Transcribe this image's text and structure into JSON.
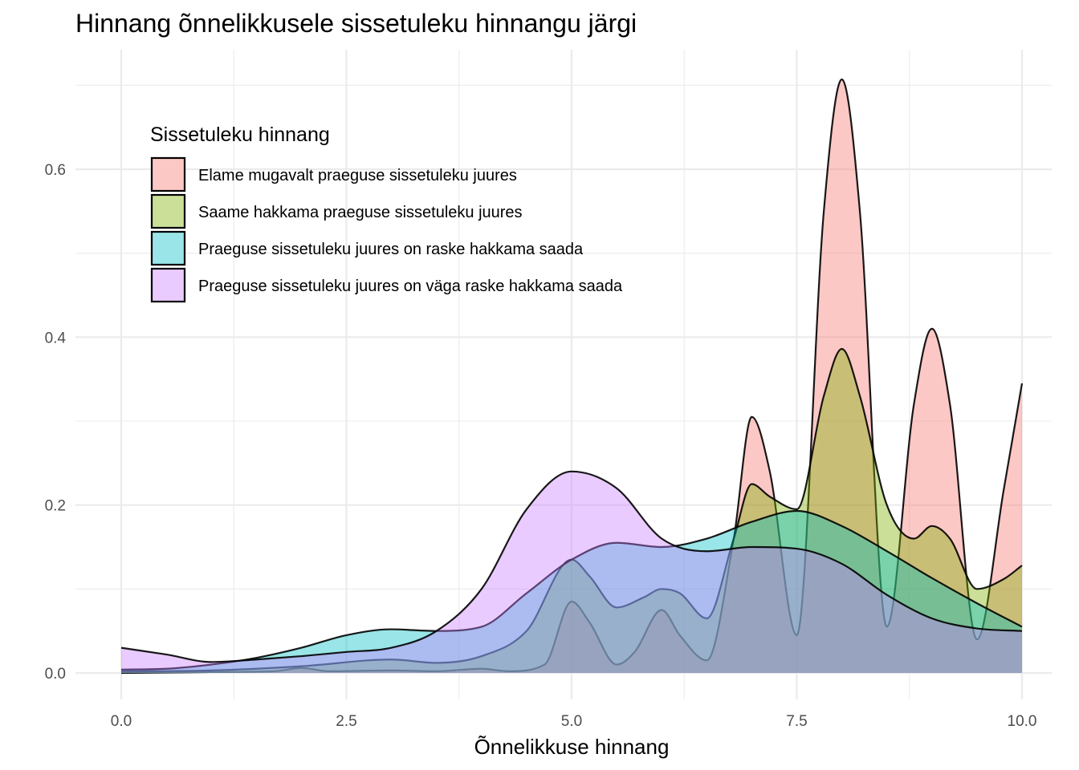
{
  "chart_data": {
    "type": "area",
    "title": "Hinnang õnnelikkusele sissetuleku hinnangu järgi",
    "xlabel": "Õnnelikkuse hinnang",
    "ylabel": "",
    "xlim": [
      0,
      10
    ],
    "ylim": [
      0,
      0.7
    ],
    "x_ticks": [
      "0.0",
      "2.5",
      "5.0",
      "7.5",
      "10.0"
    ],
    "y_ticks": [
      "0.0",
      "0.2",
      "0.4",
      "0.6"
    ],
    "grid": true,
    "legend": {
      "title": "Sissetuleku hinnang",
      "position": "top-left"
    },
    "series": [
      {
        "name": "Elame mugavalt praeguse sissetuleku juures",
        "color": "#F8766D",
        "points": [
          [
            0,
            0.0
          ],
          [
            1,
            0.001
          ],
          [
            1.7,
            0.002
          ],
          [
            2,
            0.006
          ],
          [
            2.3,
            0.002
          ],
          [
            3,
            0.003
          ],
          [
            3.5,
            0.002
          ],
          [
            4,
            0.005
          ],
          [
            4.3,
            0.002
          ],
          [
            4.7,
            0.01
          ],
          [
            5,
            0.085
          ],
          [
            5.2,
            0.06
          ],
          [
            5.5,
            0.01
          ],
          [
            5.7,
            0.025
          ],
          [
            6,
            0.075
          ],
          [
            6.2,
            0.045
          ],
          [
            6.5,
            0.015
          ],
          [
            6.8,
            0.16
          ],
          [
            7,
            0.305
          ],
          [
            7.2,
            0.24
          ],
          [
            7.5,
            0.045
          ],
          [
            7.8,
            0.55
          ],
          [
            8,
            0.707
          ],
          [
            8.2,
            0.55
          ],
          [
            8.5,
            0.055
          ],
          [
            8.8,
            0.32
          ],
          [
            9,
            0.41
          ],
          [
            9.2,
            0.32
          ],
          [
            9.5,
            0.04
          ],
          [
            9.8,
            0.22
          ],
          [
            10,
            0.345
          ]
        ]
      },
      {
        "name": "Saame hakkama praeguse sissetuleku juures",
        "color": "#7CAE00",
        "points": [
          [
            0,
            0.002
          ],
          [
            1,
            0.003
          ],
          [
            2,
            0.008
          ],
          [
            3,
            0.016
          ],
          [
            3.5,
            0.012
          ],
          [
            4,
            0.02
          ],
          [
            4.5,
            0.05
          ],
          [
            5,
            0.135
          ],
          [
            5.2,
            0.115
          ],
          [
            5.5,
            0.078
          ],
          [
            5.8,
            0.09
          ],
          [
            6,
            0.1
          ],
          [
            6.2,
            0.095
          ],
          [
            6.5,
            0.065
          ],
          [
            6.8,
            0.16
          ],
          [
            7,
            0.225
          ],
          [
            7.2,
            0.21
          ],
          [
            7.5,
            0.195
          ],
          [
            7.8,
            0.33
          ],
          [
            8,
            0.386
          ],
          [
            8.2,
            0.33
          ],
          [
            8.5,
            0.2
          ],
          [
            8.8,
            0.16
          ],
          [
            9,
            0.175
          ],
          [
            9.2,
            0.16
          ],
          [
            9.5,
            0.1
          ],
          [
            9.8,
            0.112
          ],
          [
            10,
            0.128
          ]
        ]
      },
      {
        "name": "Praeguse sissetuleku juures on raske hakkama saada",
        "color": "#00BFC4",
        "points": [
          [
            0,
            0.004
          ],
          [
            0.5,
            0.005
          ],
          [
            1,
            0.01
          ],
          [
            1.5,
            0.018
          ],
          [
            2,
            0.03
          ],
          [
            2.5,
            0.045
          ],
          [
            3,
            0.052
          ],
          [
            3.5,
            0.05
          ],
          [
            4,
            0.055
          ],
          [
            4.5,
            0.095
          ],
          [
            5,
            0.135
          ],
          [
            5.5,
            0.155
          ],
          [
            6,
            0.15
          ],
          [
            6.5,
            0.16
          ],
          [
            7,
            0.18
          ],
          [
            7.5,
            0.193
          ],
          [
            8,
            0.175
          ],
          [
            8.5,
            0.145
          ],
          [
            9,
            0.113
          ],
          [
            9.5,
            0.083
          ],
          [
            10,
            0.055
          ]
        ]
      },
      {
        "name": "Praeguse sissetuleku juures on väga raske hakkama saada",
        "color": "#C77CFF",
        "points": [
          [
            0,
            0.03
          ],
          [
            0.5,
            0.022
          ],
          [
            1,
            0.013
          ],
          [
            1.5,
            0.016
          ],
          [
            2,
            0.02
          ],
          [
            2.5,
            0.025
          ],
          [
            3,
            0.03
          ],
          [
            3.5,
            0.05
          ],
          [
            4,
            0.1
          ],
          [
            4.5,
            0.195
          ],
          [
            5,
            0.24
          ],
          [
            5.5,
            0.22
          ],
          [
            6,
            0.16
          ],
          [
            6.5,
            0.145
          ],
          [
            7,
            0.15
          ],
          [
            7.5,
            0.148
          ],
          [
            8,
            0.13
          ],
          [
            8.5,
            0.093
          ],
          [
            9,
            0.065
          ],
          [
            9.5,
            0.053
          ],
          [
            10,
            0.05
          ]
        ]
      }
    ]
  }
}
